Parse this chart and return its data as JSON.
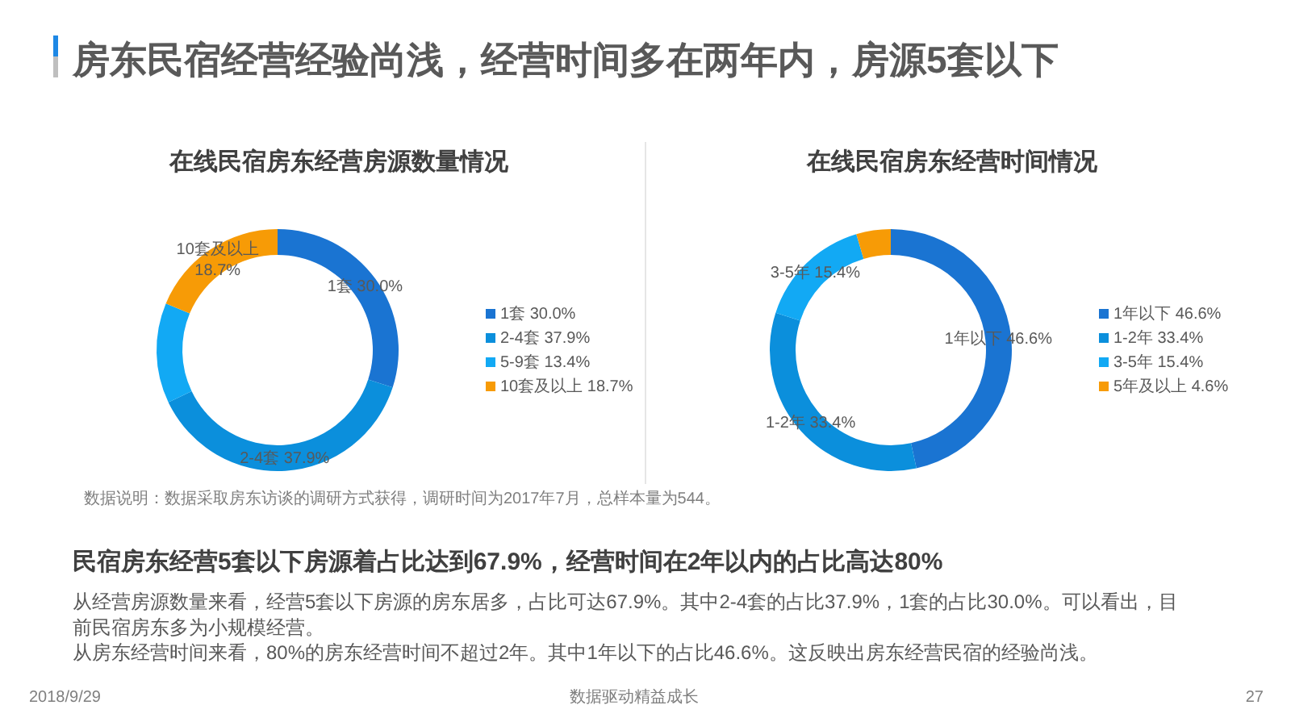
{
  "chart_data": [
    {
      "type": "other",
      "title": "房东民宿经营经验尚浅，经营时间多在两年内，房源5套以下",
      "annotations": [
        "数据说明：数据采取房东访谈的调研方式获得，调研时间为2017年7月，总样本量为544。",
        "民宿房东经营5套以下房源着占比达到67.9%，经营时间在2年以内的占比高达80%",
        "从经营房源数量来看，经营5套以下房源的房东居多，占比可达67.9%。其中2-4套的占比37.9%，1套的占比30.0%。可以看出，目前民宿房东多为小规模经营。",
        "从房东经营时间来看，80%的房东经营时间不超过2年。其中1年以下的占比46.6%。这反映出房东经营民宿的经验尚浅。",
        "2018/9/29",
        "数据驱动精益成长",
        "27"
      ]
    },
    {
      "type": "donut",
      "title": "在线民宿房东经营房源数量情况",
      "categories": [
        "1套 30.0%",
        "2-4套 37.9%",
        "5-9套 13.4%",
        "10套及以上 18.7%"
      ],
      "values": [
        30.0,
        37.9,
        13.4,
        18.7
      ],
      "colors": [
        "#1a74d2",
        "#0b8fdc",
        "#12a9f4",
        "#f79b06"
      ],
      "value_labels": [
        "1套 30.0%",
        "2-4套 37.9%",
        null,
        "10套及以上\n18.7%"
      ],
      "legend": "right"
    },
    {
      "type": "donut",
      "title": "在线民宿房东经营时间情况",
      "categories": [
        "1年以下 46.6%",
        "1-2年 33.4%",
        "3-5年 15.4%",
        "5年及以上 4.6%"
      ],
      "values": [
        46.6,
        33.4,
        15.4,
        4.6
      ],
      "colors": [
        "#1a74d2",
        "#0b8fdc",
        "#12a9f4",
        "#f79b06"
      ],
      "value_labels": [
        "1年以下 46.6%",
        "1-2年 33.4%",
        "3-5年 15.4%",
        null
      ],
      "legend": "right"
    }
  ]
}
